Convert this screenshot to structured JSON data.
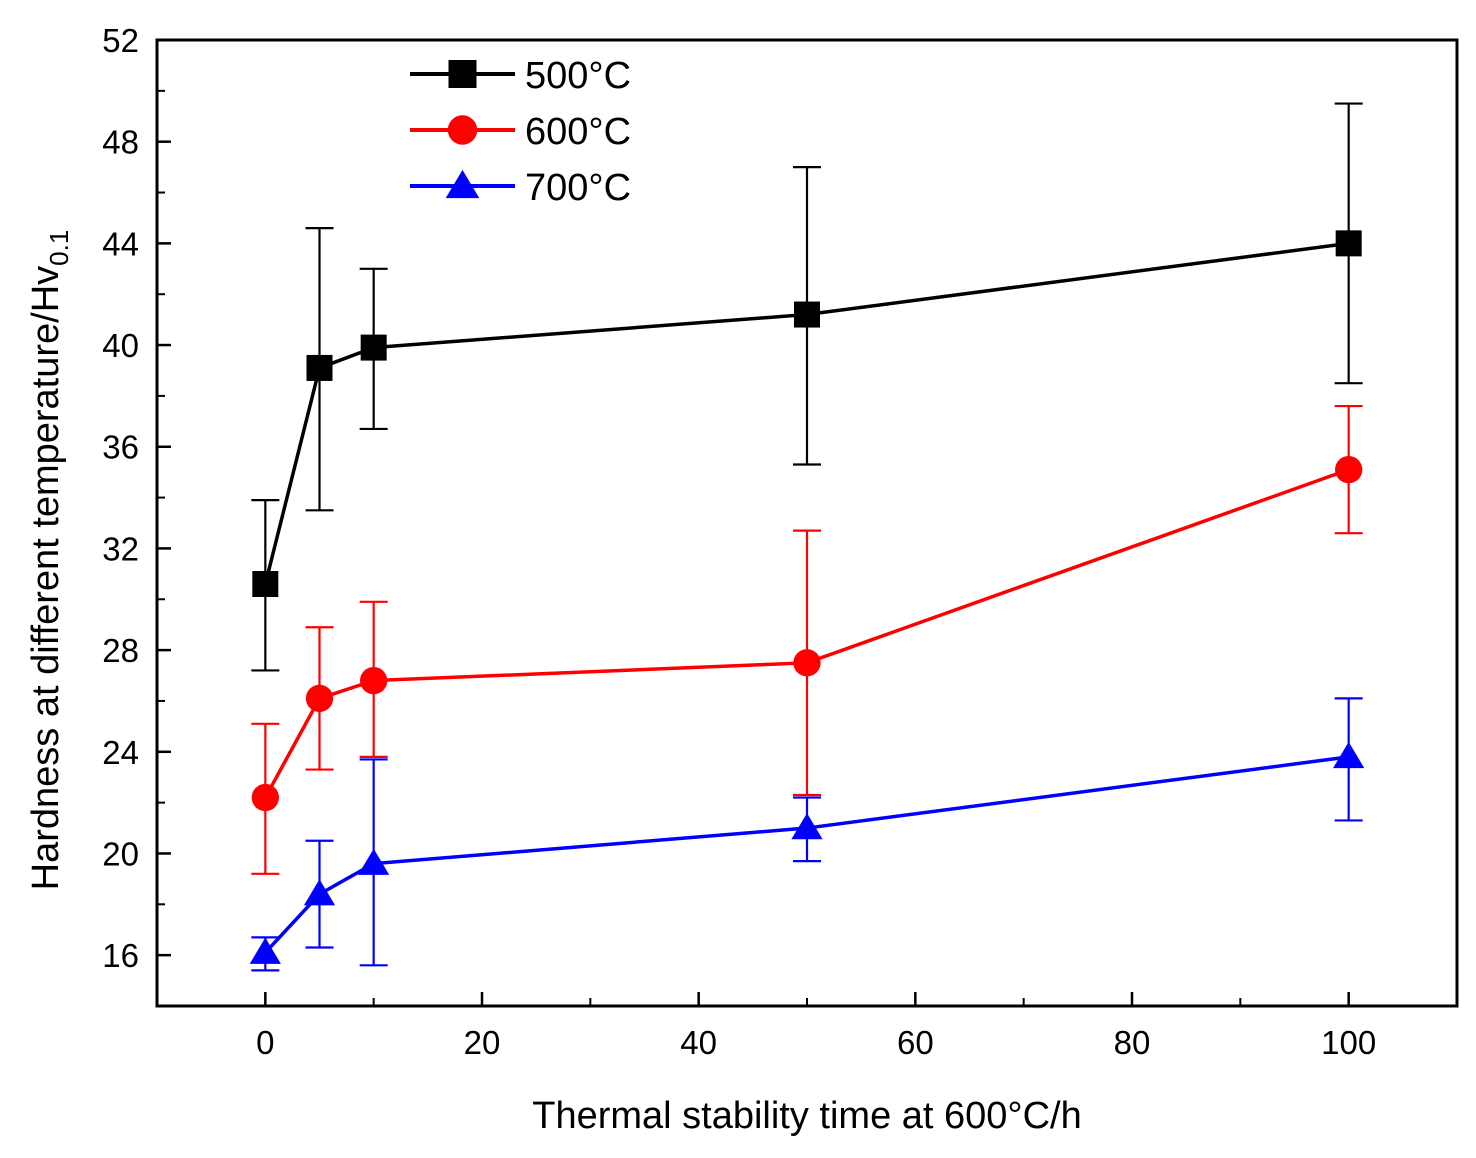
{
  "chart_data": {
    "type": "line",
    "title": "",
    "xlabel": "Thermal stability time at 600°C/h",
    "ylabel_main": "Hardness at different temperature/Hv",
    "ylabel_sub": "0.1",
    "xlim": [
      -10,
      110
    ],
    "ylim": [
      14,
      52
    ],
    "xticks": [
      0,
      20,
      40,
      60,
      80,
      100
    ],
    "xtick_labels": [
      "0",
      "20",
      "40",
      "60",
      "80",
      "100"
    ],
    "yticks": [
      16,
      20,
      24,
      28,
      32,
      36,
      40,
      44,
      48,
      52
    ],
    "ytick_labels": [
      "16",
      "20",
      "24",
      "28",
      "32",
      "36",
      "40",
      "44",
      "48",
      "52"
    ],
    "x": [
      0,
      5,
      10,
      50,
      100
    ],
    "legend_position": "top-left",
    "series": [
      {
        "name": "500°C",
        "color": "#000000",
        "marker": "square",
        "values": [
          30.6,
          39.1,
          39.9,
          41.2,
          44.0
        ],
        "err_low": [
          27.2,
          33.5,
          36.7,
          35.3,
          38.5
        ],
        "err_high": [
          33.9,
          44.6,
          43.0,
          47.0,
          49.5
        ]
      },
      {
        "name": "600°C",
        "color": "#ff0000",
        "marker": "circle",
        "values": [
          22.2,
          26.1,
          26.8,
          27.5,
          35.1
        ],
        "err_low": [
          19.2,
          23.3,
          23.8,
          22.3,
          32.6
        ],
        "err_high": [
          25.1,
          28.9,
          29.9,
          32.7,
          37.6
        ]
      },
      {
        "name": "700°C",
        "color": "#0000ff",
        "marker": "triangle",
        "values": [
          16.1,
          18.4,
          19.6,
          21.0,
          23.8
        ],
        "err_low": [
          15.4,
          16.3,
          15.6,
          19.7,
          21.3
        ],
        "err_high": [
          16.7,
          20.5,
          23.7,
          22.2,
          26.1
        ]
      }
    ]
  }
}
